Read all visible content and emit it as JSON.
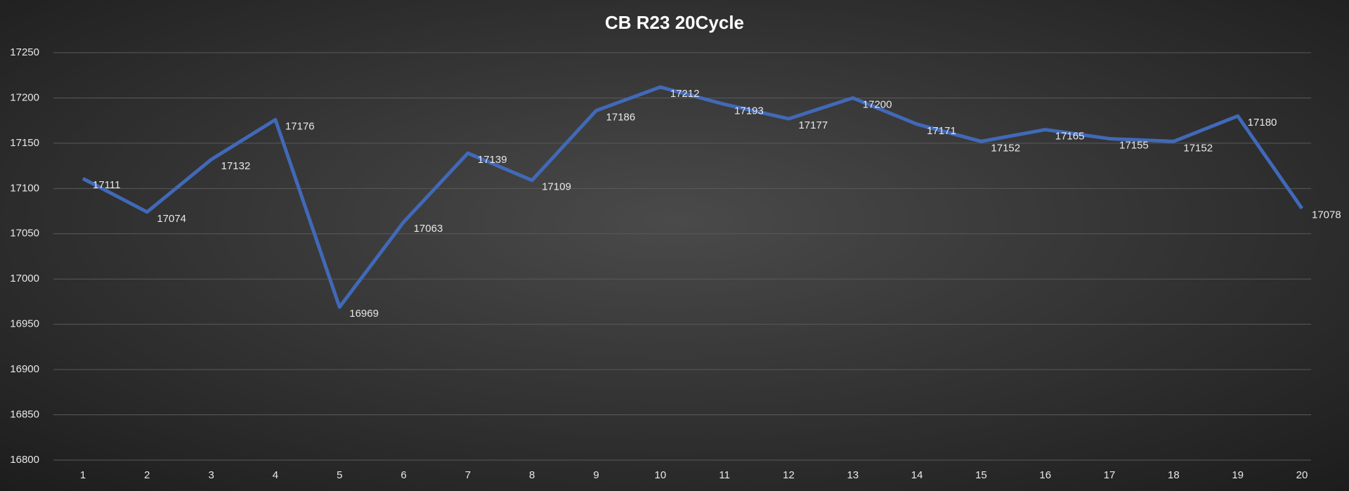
{
  "chart_data": {
    "type": "line",
    "title": "CB R23 20Cycle",
    "categories": [
      "1",
      "2",
      "3",
      "4",
      "5",
      "6",
      "7",
      "8",
      "9",
      "10",
      "11",
      "12",
      "13",
      "14",
      "15",
      "16",
      "17",
      "18",
      "19",
      "20"
    ],
    "series": [
      {
        "name": "CB R23",
        "color": "#4169b8",
        "values": [
          17111,
          17074,
          17132,
          17176,
          16969,
          17063,
          17139,
          17109,
          17186,
          17212,
          17193,
          17177,
          17200,
          17171,
          17152,
          17165,
          17155,
          17152,
          17180,
          17078
        ]
      }
    ],
    "ylim": [
      16800,
      17250
    ],
    "yticks": [
      16800,
      16850,
      16900,
      16950,
      17000,
      17050,
      17100,
      17150,
      17200,
      17250
    ],
    "grid": true,
    "data_labels": true
  }
}
